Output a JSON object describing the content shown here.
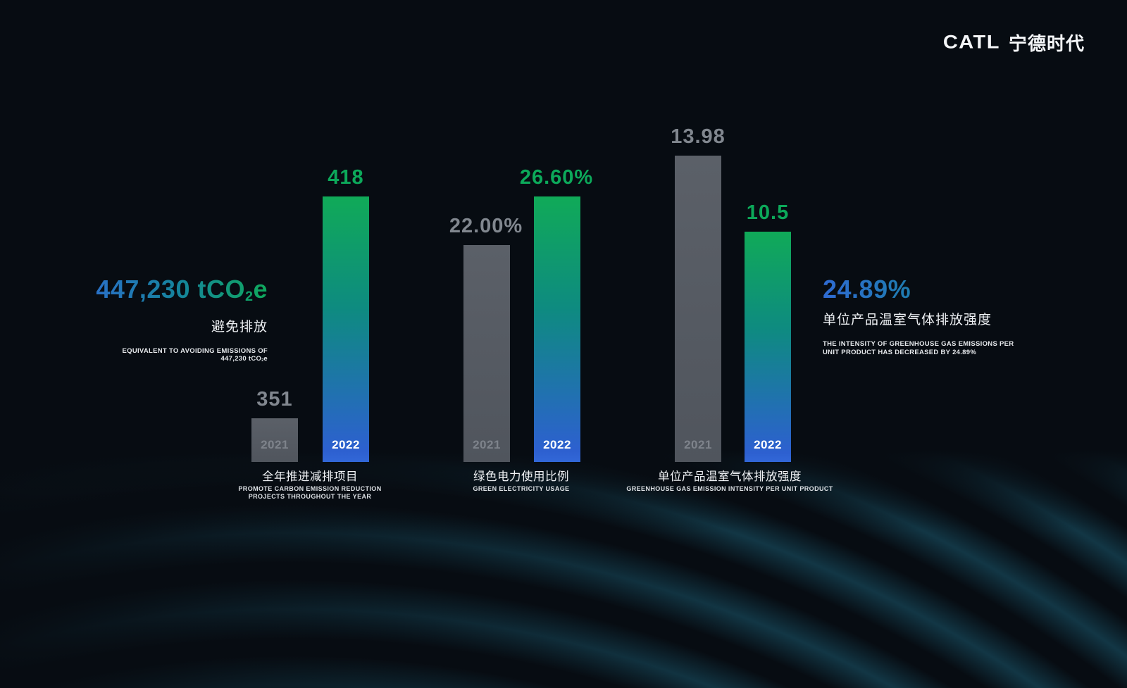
{
  "logo": {
    "brand": "CATL",
    "brand_zh": "宁德时代"
  },
  "stats": {
    "left": {
      "value_prefix": "447,230 tCO",
      "value_sub": "2",
      "value_suffix": "e",
      "label_zh": "避免排放",
      "caption_line1": "EQUIVALENT TO AVOIDING EMISSIONS OF",
      "caption_line2_prefix": "447,230 tCO",
      "caption_line2_sub": "2",
      "caption_line2_suffix": "e"
    },
    "right": {
      "value": "24.89%",
      "label_zh": "单位产品温室气体排放强度",
      "caption_line1": "THE INTENSITY OF GREENHOUSE GAS EMISSIONS PER",
      "caption_line2": "UNIT PRODUCT HAS DECREASED BY 24.89%"
    }
  },
  "charts": [
    {
      "title_zh": "全年推进减排项目",
      "subtitle_en": "PROMOTE CARBON EMISSION REDUCTION PROJECTS THROUGHOUT THE YEAR",
      "bars": [
        {
          "year": "2021",
          "value": "351"
        },
        {
          "year": "2022",
          "value": "418"
        }
      ]
    },
    {
      "title_zh": "绿色电力使用比例",
      "subtitle_en": "GREEN ELECTRICITY USAGE",
      "bars": [
        {
          "year": "2021",
          "value": "22.00%"
        },
        {
          "year": "2022",
          "value": "26.60%"
        }
      ]
    },
    {
      "title_zh": "单位产品温室气体排放强度",
      "subtitle_en": "GREENHOUSE GAS EMISSION INTENSITY PER UNIT PRODUCT",
      "bars": [
        {
          "year": "2021",
          "value": "13.98"
        },
        {
          "year": "2022",
          "value": "10.5"
        }
      ]
    }
  ],
  "chart_data": [
    {
      "type": "bar",
      "title": "全年推进减排项目 (PROMOTE CARBON EMISSION REDUCTION PROJECTS THROUGHOUT THE YEAR)",
      "categories": [
        "2021",
        "2022"
      ],
      "values": [
        351,
        418
      ],
      "value_labels": [
        "351",
        "418"
      ],
      "legend_position": "none",
      "grid": false
    },
    {
      "type": "bar",
      "title": "绿色电力使用比例 (GREEN ELECTRICITY USAGE)",
      "categories": [
        "2021",
        "2022"
      ],
      "values": [
        22.0,
        26.6
      ],
      "value_labels": [
        "22.00%",
        "26.60%"
      ],
      "unit": "%",
      "legend_position": "none",
      "grid": false
    },
    {
      "type": "bar",
      "title": "单位产品温室气体排放强度 (GREENHOUSE GAS EMISSION INTENSITY PER UNIT PRODUCT)",
      "categories": [
        "2021",
        "2022"
      ],
      "values": [
        13.98,
        10.5
      ],
      "value_labels": [
        "13.98",
        "10.5"
      ],
      "legend_position": "none",
      "grid": false
    }
  ],
  "colors": {
    "background": "#070c12",
    "bar_2021_gray": "#565b63",
    "bar_2022_gradient_top": "#10aa58",
    "bar_2022_gradient_mid": "#0e8b80",
    "bar_2022_gradient_bottom": "#2d60d0",
    "value_green": "#0ca95a",
    "value_gray": "#81878f",
    "headline_gradient_start": "#2f6bd3",
    "headline_gradient_end": "#0fa95c",
    "text_white": "#f0f2f5",
    "wave_teal": "#143e4e"
  }
}
